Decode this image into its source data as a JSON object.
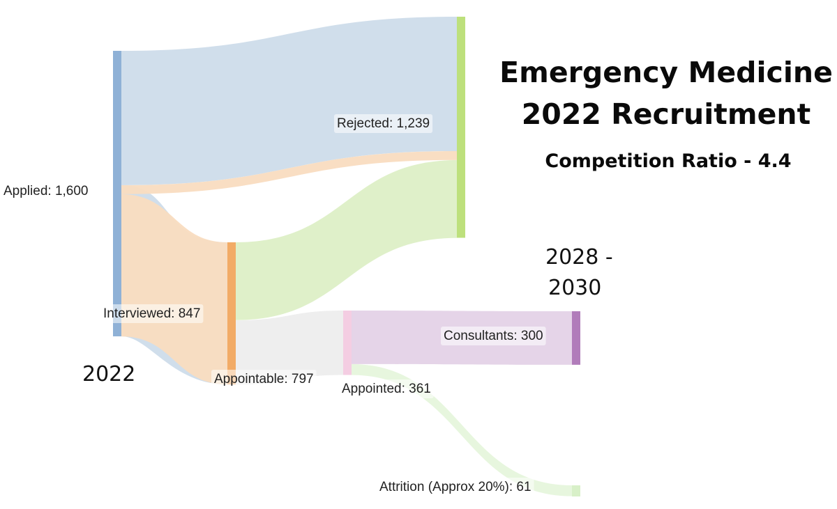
{
  "chart_data": {
    "type": "sankey",
    "title": "Emergency Medicine",
    "title_line_2": "2022 Recruitment",
    "subtitle": "Competition Ratio - 4.4",
    "stage_labels": {
      "start": "2022",
      "end_line_1": "2028 -",
      "end_line_2": "2030"
    },
    "nodes": [
      {
        "id": "applied",
        "label": "Applied: 1,600",
        "value": 1600,
        "color": "#8fb1d6"
      },
      {
        "id": "interviewed",
        "label": "Interviewed: 847",
        "value": 847,
        "color": "#8fb1d6"
      },
      {
        "id": "appointable",
        "label": "Appointable: 797",
        "value": 797,
        "color": "#f2ab66"
      },
      {
        "id": "appointed",
        "label": "Appointed: 361",
        "value": 361,
        "color": "#f4cde2"
      },
      {
        "id": "rejected",
        "label": "Rejected: 1,239",
        "value": 1239,
        "color": "#bde07c"
      },
      {
        "id": "consultants",
        "label": "Consultants: 300",
        "value": 300,
        "color": "#b17cba"
      },
      {
        "id": "attrition",
        "label": "Attrition (Approx 20%): 61",
        "value": 61,
        "color": "#d8f0c8"
      }
    ],
    "links": [
      {
        "source": "applied",
        "target": "rejected",
        "value": 753,
        "color": "#cddcea"
      },
      {
        "source": "applied",
        "target": "interviewed",
        "value": 847,
        "color": "#cddcea"
      },
      {
        "source": "interviewed",
        "target": "rejected",
        "value": 50,
        "color": "#f9dcc0"
      },
      {
        "source": "interviewed",
        "target": "appointable",
        "value": 797,
        "color": "#f9dcc0"
      },
      {
        "source": "appointable",
        "target": "rejected",
        "value": 436,
        "color": "#ddefc6"
      },
      {
        "source": "appointable",
        "target": "appointed",
        "value": 361,
        "color": "#ededed"
      },
      {
        "source": "appointed",
        "target": "consultants",
        "value": 300,
        "color": "#e4d2e7"
      },
      {
        "source": "appointed",
        "target": "attrition",
        "value": 61,
        "color": "#e6f5dc"
      }
    ]
  }
}
